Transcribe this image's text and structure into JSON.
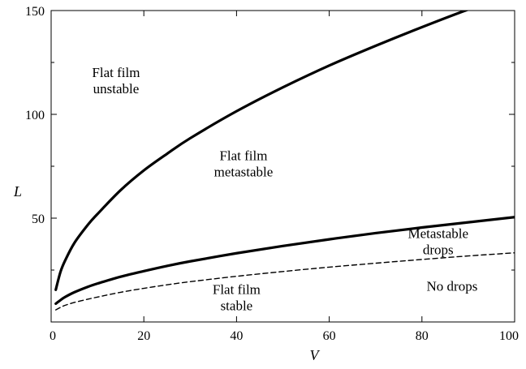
{
  "chart_data": {
    "type": "line",
    "title": "",
    "xlabel": "V",
    "ylabel": "L",
    "xlim": [
      0,
      100
    ],
    "ylim": [
      0,
      150
    ],
    "xticks": [
      0,
      20,
      40,
      60,
      80,
      100
    ],
    "yticks": [
      50,
      100,
      150
    ],
    "grid": false,
    "series": [
      {
        "style": "solid",
        "x": [
          1,
          2,
          3,
          5,
          8,
          10,
          15,
          20,
          25,
          30,
          40,
          50,
          60,
          70,
          80,
          90,
          94
        ],
        "y": [
          15.5,
          24,
          29.5,
          38,
          47,
          52,
          63.5,
          73,
          81,
          88.5,
          101.5,
          113,
          123.5,
          133,
          142,
          150.5,
          153
        ]
      },
      {
        "style": "solid",
        "x": [
          1,
          2,
          3,
          5,
          8,
          10,
          15,
          20,
          25,
          30,
          40,
          50,
          60,
          70,
          80,
          90,
          100
        ],
        "y": [
          8.8,
          10.5,
          12,
          14.3,
          17,
          18.5,
          21.8,
          24.5,
          27,
          29.2,
          33.1,
          36.6,
          39.8,
          42.8,
          45.5,
          48,
          50.5
        ]
      },
      {
        "style": "dashed",
        "x": [
          1,
          2,
          3,
          5,
          8,
          10,
          15,
          20,
          25,
          30,
          40,
          50,
          60,
          70,
          80,
          90,
          100
        ],
        "y": [
          5.8,
          7,
          8,
          9.4,
          11,
          12,
          14.3,
          16.2,
          17.9,
          19.4,
          22,
          24.3,
          26.4,
          28.3,
          30.1,
          31.8,
          33.3
        ]
      }
    ],
    "annotations": [
      {
        "lines": [
          "Flat film",
          "unstable"
        ],
        "x": 14,
        "y": 118
      },
      {
        "lines": [
          "Flat film",
          "metastable"
        ],
        "x": 41.5,
        "y": 78
      },
      {
        "lines": [
          "Metastable",
          "drops"
        ],
        "x": 83.5,
        "y": 40.5
      },
      {
        "lines": [
          "Flat film",
          "stable"
        ],
        "x": 40,
        "y": 13.5
      },
      {
        "lines": [
          "No drops"
        ],
        "x": 86.5,
        "y": 15
      }
    ]
  }
}
